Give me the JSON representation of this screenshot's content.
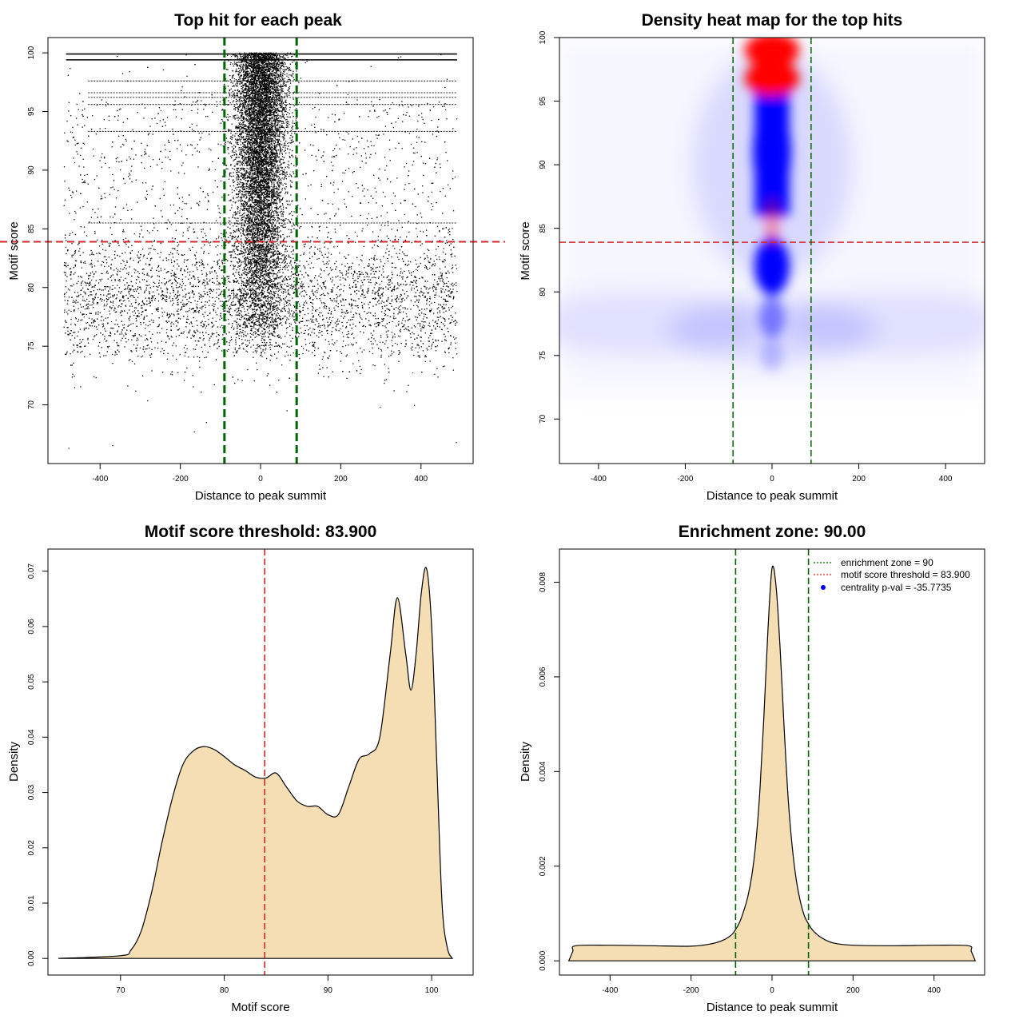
{
  "figure": {
    "panels": [
      "Top hit for each peak",
      "Density heat map for the top hits",
      "Motif score threshold: 83.900",
      "Enrichment zone: 90.00"
    ]
  },
  "colors": {
    "threshold_line": "#d62728",
    "zone_line": "#006400",
    "density_fill": "#f5deb3",
    "heat_low": "#ffffff",
    "heat_mid": "#0000ff",
    "heat_high": "#ff0000",
    "points": "#000000"
  },
  "chart_data": [
    {
      "id": "scatter",
      "type": "scatter",
      "title": "Top hit for each peak",
      "xlabel": "Distance to peak summit",
      "ylabel": "Motif score",
      "xlim": [
        -530,
        530
      ],
      "ylim": [
        65,
        101.3
      ],
      "xticks": [
        -400,
        -200,
        0,
        200,
        400
      ],
      "yticks": [
        70,
        75,
        80,
        85,
        90,
        95,
        100
      ],
      "x_range_points": [
        -490,
        490
      ],
      "threshold_y": 83.9,
      "zone_x": [
        -90,
        90
      ],
      "dense_rows": [
        99.9,
        99.4,
        97.6,
        96.6,
        96.2,
        95.6,
        93.3,
        85.5
      ],
      "outliers": [
        {
          "x": -478,
          "y": 66.3
        },
        {
          "x": 488,
          "y": 66.8
        },
        {
          "x": -165,
          "y": 67.7
        },
        {
          "x": 66,
          "y": 69.5
        },
        {
          "x": 298,
          "y": 69.8
        },
        {
          "x": -135,
          "y": 68.5
        }
      ]
    },
    {
      "id": "heatmap",
      "type": "heatmap",
      "title": "Density heat map for the top hits",
      "xlabel": "Distance to peak summit",
      "ylabel": "Motif score",
      "xlim": [
        -490,
        490
      ],
      "ylim": [
        66.5,
        100
      ],
      "xticks": [
        -400,
        -200,
        0,
        200,
        400
      ],
      "yticks": [
        70,
        75,
        80,
        85,
        90,
        95,
        100
      ],
      "threshold_y": 83.9,
      "zone_x": [
        -90,
        90
      ],
      "hotspots": [
        {
          "x": 0,
          "y": 99.0,
          "intensity": "high"
        },
        {
          "x": 0,
          "y": 96.8,
          "intensity": "high"
        },
        {
          "x": 0,
          "y": 85.5,
          "intensity": "medium"
        }
      ]
    },
    {
      "id": "score_density",
      "type": "area",
      "title": "Motif score threshold: 83.900",
      "xlabel": "Motif score",
      "ylabel": "Density",
      "xlim": [
        63,
        104
      ],
      "ylim": [
        -0.003,
        0.074
      ],
      "xticks": [
        70,
        80,
        90,
        100
      ],
      "yticks": [
        0.0,
        0.01,
        0.02,
        0.03,
        0.04,
        0.05,
        0.06,
        0.07
      ],
      "ytick_labels": [
        "0.00",
        "0.01",
        "0.02",
        "0.03",
        "0.04",
        "0.05",
        "0.06",
        "0.07"
      ],
      "threshold_x": 83.9,
      "x": [
        64.0,
        70.0,
        71.0,
        72.0,
        73.0,
        74.0,
        75.0,
        76.0,
        77.0,
        78.0,
        79.0,
        80.0,
        81.0,
        82.0,
        83.0,
        84.0,
        85.0,
        86.0,
        87.0,
        88.0,
        89.0,
        90.0,
        91.0,
        92.0,
        93.0,
        94.0,
        95.0,
        96.0,
        96.7,
        97.5,
        98.0,
        98.5,
        99.0,
        99.5,
        100.0,
        100.5,
        101.0,
        101.5,
        102.0
      ],
      "y": [
        0.0,
        0.0005,
        0.0015,
        0.005,
        0.012,
        0.021,
        0.029,
        0.035,
        0.0375,
        0.0383,
        0.0378,
        0.0365,
        0.035,
        0.034,
        0.0328,
        0.0326,
        0.0335,
        0.031,
        0.0285,
        0.0275,
        0.0275,
        0.026,
        0.026,
        0.031,
        0.036,
        0.037,
        0.04,
        0.055,
        0.0652,
        0.055,
        0.0485,
        0.055,
        0.066,
        0.0705,
        0.06,
        0.035,
        0.01,
        0.002,
        0.0
      ]
    },
    {
      "id": "distance_density",
      "type": "area",
      "title": "Enrichment zone: 90.00",
      "xlabel": "Distance to peak summit",
      "ylabel": "Density",
      "xlim": [
        -525,
        525
      ],
      "ylim": [
        -0.0003,
        0.0087
      ],
      "xticks": [
        -400,
        -200,
        0,
        200,
        400
      ],
      "yticks": [
        0.0,
        0.002,
        0.004,
        0.006,
        0.008
      ],
      "ytick_labels": [
        "0.000",
        "0.002",
        "0.004",
        "0.006",
        "0.008"
      ],
      "zone_x": [
        -90,
        90
      ],
      "x": [
        -502,
        -492,
        -485,
        -400,
        -300,
        -200,
        -150,
        -120,
        -100,
        -90,
        -80,
        -70,
        -60,
        -50,
        -40,
        -30,
        -20,
        -10,
        0,
        10,
        20,
        30,
        40,
        50,
        60,
        70,
        80,
        90,
        100,
        120,
        150,
        200,
        300,
        400,
        485,
        492,
        502
      ],
      "y": [
        0.0,
        0.0002,
        0.00032,
        0.00033,
        0.00032,
        0.00031,
        0.00036,
        0.00044,
        0.00055,
        0.00066,
        0.00082,
        0.00105,
        0.00135,
        0.0018,
        0.0025,
        0.0036,
        0.0052,
        0.007,
        0.0083,
        0.0079,
        0.0066,
        0.0049,
        0.0034,
        0.0024,
        0.0017,
        0.00125,
        0.00095,
        0.00078,
        0.00065,
        0.0005,
        0.00038,
        0.00033,
        0.00032,
        0.00033,
        0.00032,
        0.0002,
        0.0
      ],
      "legend": {
        "position": "top-right",
        "entries": [
          {
            "label": "enrichment zone = 90",
            "color": "#006400",
            "style": "dotted-line"
          },
          {
            "label": "motif score threshold = 83.900",
            "color": "#d62728",
            "style": "dotted-line"
          },
          {
            "label": "centrality p-val = -35.7735",
            "color": "#0000ff",
            "style": "point"
          }
        ]
      }
    }
  ]
}
